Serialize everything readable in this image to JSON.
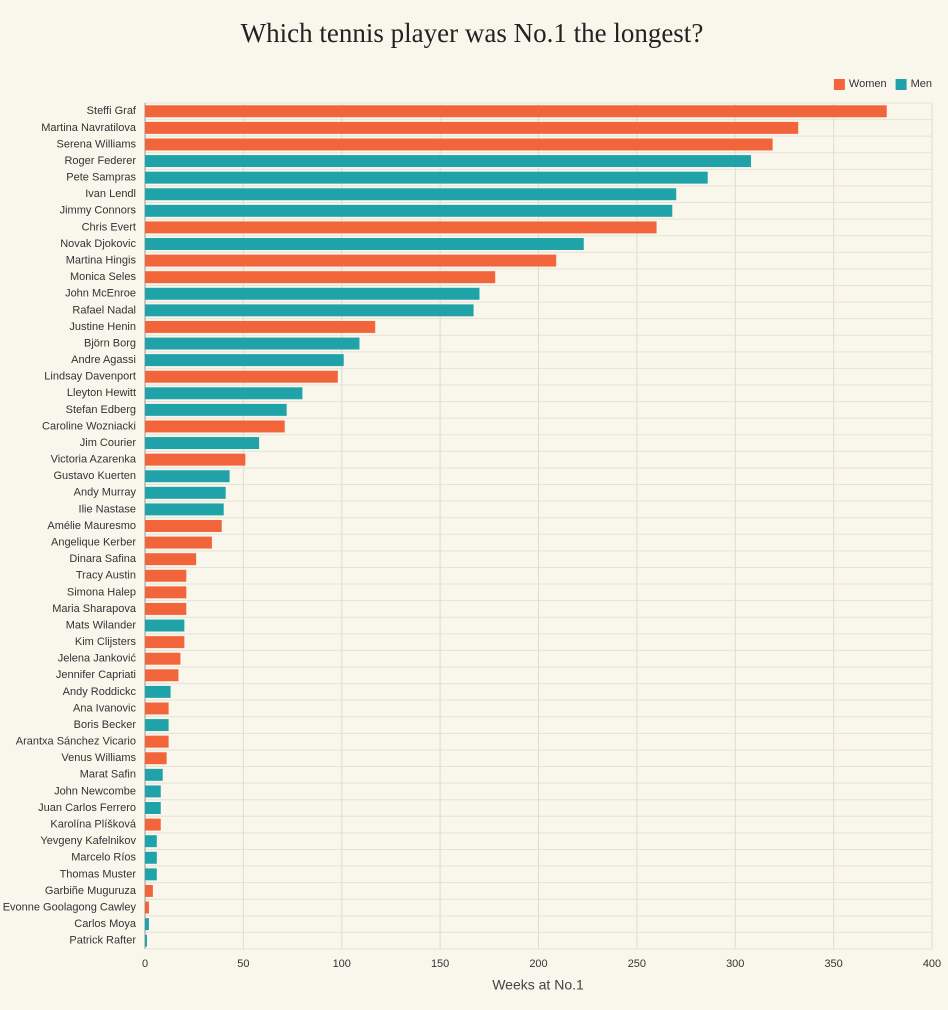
{
  "chart_data": {
    "type": "barh",
    "title": "Which tennis player was No.1 the longest?",
    "x_label": "Weeks at No.1",
    "categories": [
      "Steffi Graf",
      "Martina Navratilova",
      "Serena Williams",
      "Roger Federer",
      "Pete Sampras",
      "Ivan Lendl",
      "Jimmy Connors",
      "Chris Evert",
      "Novak Djokovic",
      "Martina Hingis",
      "Monica Seles",
      "John McEnroe",
      "Rafael Nadal",
      "Justine Henin",
      "Björn Borg",
      "Andre Agassi",
      "Lindsay Davenport",
      "Lleyton Hewitt",
      "Stefan Edberg",
      "Caroline Wozniacki",
      "Jim Courier",
      "Victoria Azarenka",
      "Gustavo Kuerten",
      "Andy Murray",
      "Ilie Nastase",
      "Amélie Mauresmo",
      "Angelique Kerber",
      "Dinara Safina",
      "Tracy Austin",
      "Simona Halep",
      "Maria Sharapova",
      "Mats Wilander",
      "Kim Clijsters",
      "Jelena Janković",
      "Jennifer Capriati",
      "Andy Roddickc",
      "Ana Ivanovic",
      "Boris Becker",
      "Arantxa Sánchez Vicario",
      "Venus Williams",
      "Marat Safin",
      "John Newcombe",
      "Juan Carlos Ferrero",
      "Karolína Plíšková",
      "Yevgeny Kafelnikov",
      "Marcelo Ríos",
      "Thomas Muster",
      "Garbiñe Muguruza",
      "Evonne Goolagong Cawley",
      "Carlos Moya",
      "Patrick Rafter"
    ],
    "series": [
      {
        "name": "Women",
        "color": "#f2643a",
        "values": [
          377,
          332,
          319,
          null,
          null,
          null,
          null,
          260,
          null,
          209,
          178,
          null,
          null,
          117,
          null,
          null,
          98,
          null,
          null,
          71,
          null,
          51,
          null,
          null,
          null,
          39,
          34,
          26,
          21,
          21,
          21,
          null,
          20,
          18,
          17,
          null,
          12,
          null,
          12,
          11,
          null,
          null,
          null,
          8,
          null,
          null,
          null,
          4,
          2,
          null,
          null
        ]
      },
      {
        "name": "Men",
        "color": "#1fa3a9",
        "values": [
          null,
          null,
          null,
          308,
          286,
          270,
          268,
          null,
          223,
          null,
          null,
          170,
          167,
          null,
          109,
          101,
          null,
          80,
          72,
          null,
          58,
          null,
          43,
          41,
          40,
          null,
          null,
          null,
          null,
          null,
          null,
          20,
          null,
          null,
          null,
          13,
          null,
          12,
          null,
          null,
          9,
          8,
          8,
          null,
          6,
          6,
          6,
          null,
          null,
          2,
          1
        ]
      }
    ],
    "xlim": [
      0,
      400
    ],
    "xticks": [
      0,
      50,
      100,
      150,
      200,
      250,
      300,
      350,
      400
    ],
    "grid": true,
    "legend": "top-right"
  }
}
